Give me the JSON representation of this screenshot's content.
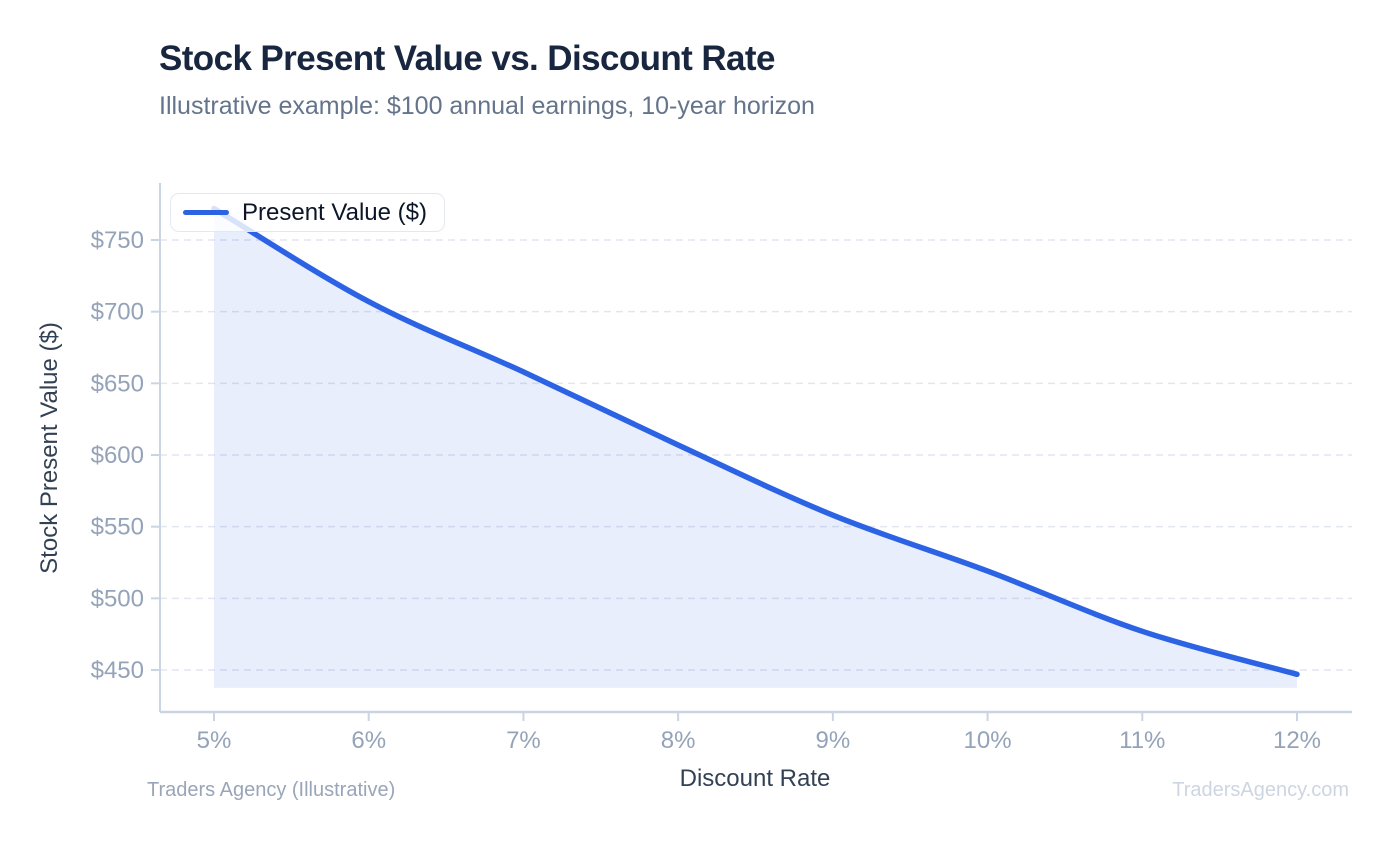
{
  "chart_data": {
    "type": "area",
    "title": "Stock Present Value vs. Discount Rate",
    "subtitle": "Illustrative example: $100 annual earnings, 10-year horizon",
    "xlabel": "Discount Rate",
    "ylabel": "Stock Present Value ($)",
    "x": [
      5,
      6,
      7,
      8,
      9,
      10,
      11,
      12
    ],
    "x_tick_labels": [
      "5%",
      "6%",
      "7%",
      "8%",
      "9%",
      "10%",
      "11%",
      "12%"
    ],
    "y_ticks": [
      450,
      500,
      550,
      600,
      650,
      700,
      750
    ],
    "y_tick_labels": [
      "$450",
      "$500",
      "$550",
      "$600",
      "$650",
      "$700",
      "$750"
    ],
    "series": [
      {
        "name": "Present Value ($)",
        "values": [
          772,
          707,
          658,
          607,
          558,
          519,
          477,
          447
        ]
      }
    ],
    "ylim": [
      437.5,
      790
    ],
    "xlim": [
      4.65,
      12.36
    ],
    "grid": "horizontal-dashed",
    "legend_position": "top-left",
    "colors": {
      "line": "#2b63e4",
      "fill": "rgba(43, 99, 228, 0.11)",
      "title_text": "#18263f",
      "subtitle_text": "#64748b",
      "axis_title_text": "#334155",
      "tick_label_text": "#94a3b8",
      "axis_line": "#cbd5e1",
      "gridline": "#e2e6f0",
      "legend_text": "#0c1626",
      "footer_left_text": "#99a5b8",
      "footer_right_text": "#ced5e2"
    }
  },
  "footer": {
    "left": "Traders Agency (Illustrative)",
    "right": "TradersAgency.com"
  }
}
